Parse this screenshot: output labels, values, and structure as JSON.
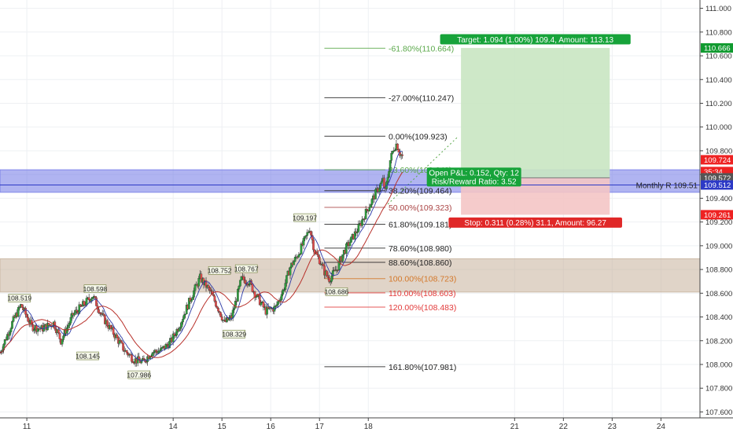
{
  "chart_data": {
    "type": "candlestick",
    "y_axis": {
      "range": [
        107.55,
        111.07
      ],
      "ticks": [
        "111.000",
        "110.800",
        "110.600",
        "110.400",
        "110.200",
        "110.000",
        "109.800",
        "109.600",
        "109.400",
        "109.200",
        "109.000",
        "108.800",
        "108.600",
        "108.400",
        "108.200",
        "108.000",
        "107.800",
        "107.600"
      ]
    },
    "x_axis": {
      "range": [
        10.45,
        24.8
      ],
      "ticks": [
        {
          "label": "11",
          "x": 11
        },
        {
          "label": "14",
          "x": 14
        },
        {
          "label": "15",
          "x": 15
        },
        {
          "label": "16",
          "x": 16
        },
        {
          "label": "17",
          "x": 17
        },
        {
          "label": "18",
          "x": 18
        },
        {
          "label": "21",
          "x": 21
        },
        {
          "label": "22",
          "x": 22
        },
        {
          "label": "23",
          "x": 23
        },
        {
          "label": "24",
          "x": 24
        }
      ]
    },
    "price_anchors": [
      [
        10.45,
        108.1
      ],
      [
        10.7,
        108.35
      ],
      [
        10.88,
        108.5
      ],
      [
        11.1,
        108.32
      ],
      [
        11.3,
        108.3
      ],
      [
        11.55,
        108.35
      ],
      [
        11.7,
        108.2
      ],
      [
        11.95,
        108.42
      ],
      [
        12.15,
        108.5
      ],
      [
        12.35,
        108.58
      ],
      [
        12.55,
        108.4
      ],
      [
        12.8,
        108.25
      ],
      [
        13.0,
        108.12
      ],
      [
        13.2,
        108.04
      ],
      [
        13.38,
        108.02
      ],
      [
        13.55,
        108.1
      ],
      [
        13.75,
        108.12
      ],
      [
        13.95,
        108.19
      ],
      [
        14.15,
        108.35
      ],
      [
        14.35,
        108.55
      ],
      [
        14.55,
        108.73
      ],
      [
        14.75,
        108.62
      ],
      [
        14.95,
        108.45
      ],
      [
        15.05,
        108.35
      ],
      [
        15.2,
        108.4
      ],
      [
        15.4,
        108.72
      ],
      [
        15.55,
        108.7
      ],
      [
        15.7,
        108.58
      ],
      [
        15.9,
        108.45
      ],
      [
        16.1,
        108.48
      ],
      [
        16.25,
        108.62
      ],
      [
        16.4,
        108.82
      ],
      [
        16.55,
        108.92
      ],
      [
        16.7,
        109.05
      ],
      [
        16.8,
        109.15
      ],
      [
        16.9,
        108.95
      ],
      [
        17.0,
        108.88
      ],
      [
        17.1,
        108.78
      ],
      [
        17.2,
        108.72
      ],
      [
        17.35,
        108.8
      ],
      [
        17.5,
        108.95
      ],
      [
        17.65,
        109.05
      ],
      [
        17.8,
        109.15
      ],
      [
        17.95,
        109.28
      ],
      [
        18.1,
        109.4
      ],
      [
        18.2,
        109.48
      ],
      [
        18.3,
        109.55
      ],
      [
        18.35,
        109.45
      ],
      [
        18.45,
        109.72
      ],
      [
        18.52,
        109.82
      ],
      [
        18.58,
        109.86
      ],
      [
        18.65,
        109.78
      ],
      [
        18.72,
        109.74
      ]
    ],
    "candles_per_day": 40,
    "fast_ma_lag": 8,
    "slow_ma_lag": 25,
    "labels": [
      {
        "text": "108.519",
        "x": 10.85,
        "y": 108.519,
        "dir": "up"
      },
      {
        "text": "108.598",
        "x": 12.4,
        "y": 108.598,
        "dir": "up"
      },
      {
        "text": "108.145",
        "x": 12.25,
        "y": 108.145,
        "dir": "down"
      },
      {
        "text": "107.986",
        "x": 13.3,
        "y": 107.986,
        "dir": "down"
      },
      {
        "text": "108.752",
        "x": 14.95,
        "y": 108.752,
        "dir": "up"
      },
      {
        "text": "108.767",
        "x": 15.5,
        "y": 108.767,
        "dir": "up"
      },
      {
        "text": "108.329",
        "x": 15.25,
        "y": 108.329,
        "dir": "down"
      },
      {
        "text": "109.197",
        "x": 16.7,
        "y": 109.197,
        "dir": "up"
      },
      {
        "text": "108.686",
        "x": 17.35,
        "y": 108.686,
        "dir": "down"
      }
    ],
    "fib_levels": [
      {
        "label": "-61.80%(110.664)",
        "value": 110.664,
        "color": "#5aa84a"
      },
      {
        "label": "-27.00%(110.247)",
        "value": 110.247,
        "color": "#222222"
      },
      {
        "label": "0.00%(109.923)",
        "value": 109.923,
        "color": "#222222"
      },
      {
        "label": "23.60%(109.640)",
        "value": 109.64,
        "color": "#5aa84a"
      },
      {
        "label": "38.20%(109.464)",
        "value": 109.464,
        "color": "#222222"
      },
      {
        "label": "50.00%(109.323)",
        "value": 109.323,
        "color": "#aa4444"
      },
      {
        "label": "61.80%(109.181)",
        "value": 109.181,
        "color": "#222222"
      },
      {
        "label": "78.60%(108.980)",
        "value": 108.98,
        "color": "#222222"
      },
      {
        "label": "88.60%(108.860)",
        "value": 108.86,
        "color": "#222222"
      },
      {
        "label": "100.00%(108.723)",
        "value": 108.723,
        "color": "#d4782a"
      },
      {
        "label": "110.00%(108.603)",
        "value": 108.603,
        "color": "#e23a3a"
      },
      {
        "label": "120.00%(108.483)",
        "value": 108.483,
        "color": "#e23a3a"
      },
      {
        "label": "161.80%(107.981)",
        "value": 107.981,
        "color": "#222222"
      }
    ],
    "fib_line_x": [
      17.1,
      18.35
    ],
    "zones": [
      {
        "name": "supply-demand-zone",
        "y_from": 108.61,
        "y_to": 108.89,
        "color": "#c6b09a"
      },
      {
        "name": "monthly-zone",
        "y_from": 109.45,
        "y_to": 109.64,
        "color": "#6f76e6"
      }
    ],
    "monthly_line": {
      "label": "Monthly R 109.51",
      "value": 109.512
    },
    "position": {
      "entry": 109.572,
      "target": 110.666,
      "stop": 109.261,
      "x_from": 19.9,
      "x_to": 22.95,
      "target_label": "Target: 1.094 (1.00%) 109.4, Amount: 113.13",
      "stop_label": "Stop: 0.311 (0.28%) 31.1, Amount: 96.27",
      "open_pnl_label": "Open P&L: 0.152, Qty: 12",
      "rr_label": "Risk/Reward Ratio: 3.52"
    },
    "price_badges": [
      {
        "text": "110.666",
        "value": 110.666,
        "bg": "#109a2f"
      },
      {
        "text": "109.724",
        "value": 109.724,
        "bg": "#ee2222"
      },
      {
        "text": "35:34",
        "value": 109.625,
        "bg": "#ee2222"
      },
      {
        "text": "109.572",
        "value": 109.572,
        "bg": "#555555"
      },
      {
        "text": "109.512",
        "value": 109.512,
        "bg": "#2c39c6"
      },
      {
        "text": "109.261",
        "value": 109.261,
        "bg": "#ee2222"
      }
    ],
    "colors": {
      "bull": "#2e9e3e",
      "bear": "#e04b4b",
      "fast_ma": "#2c3aa8",
      "slow_ma": "#b8312b",
      "grid": "#eef0f3",
      "axis_text": "#333333",
      "target_fill": "#c9e6c2",
      "stop_fill": "#f4c5c5"
    }
  }
}
